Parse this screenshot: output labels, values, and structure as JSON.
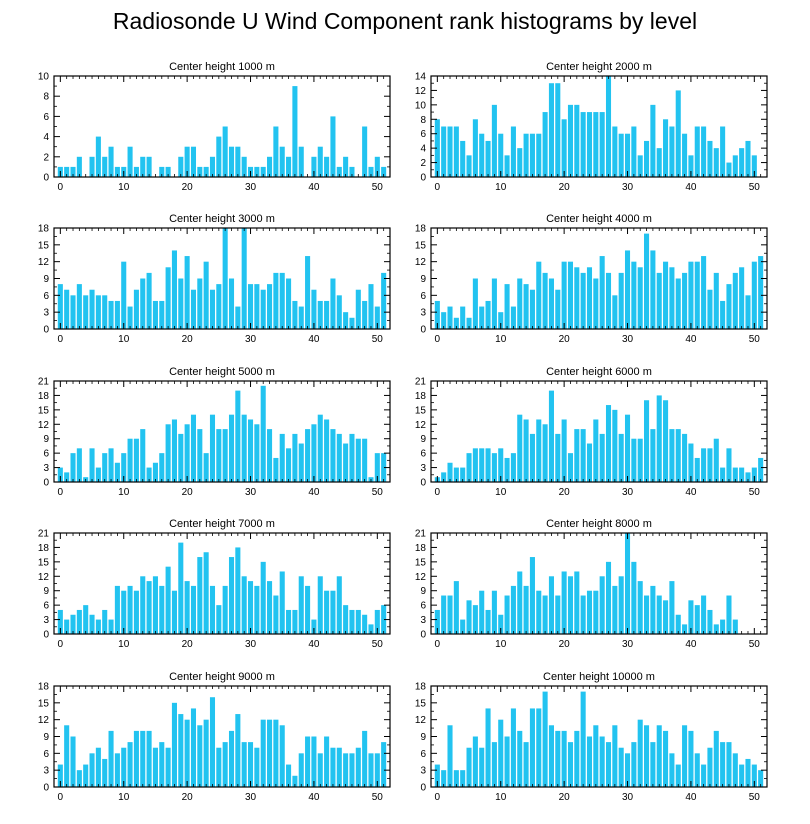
{
  "title": "Radiosonde U Wind Component rank histograms by level",
  "bar_color": "#22c3f0",
  "chart_data": [
    {
      "type": "bar",
      "title": "Center height 1000 m",
      "ylim": [
        0,
        10
      ],
      "yticks": [
        0,
        2,
        4,
        6,
        8,
        10
      ],
      "xticks": [
        0,
        10,
        20,
        30,
        40,
        50
      ],
      "x": [
        0,
        1,
        2,
        3,
        4,
        5,
        6,
        7,
        8,
        9,
        10,
        11,
        12,
        13,
        14,
        15,
        16,
        17,
        18,
        19,
        20,
        21,
        22,
        23,
        24,
        25,
        26,
        27,
        28,
        29,
        30,
        31,
        32,
        33,
        34,
        35,
        36,
        37,
        38,
        39,
        40,
        41,
        42,
        43,
        44,
        45,
        46,
        47,
        48,
        49,
        50,
        51
      ],
      "values": [
        1,
        1,
        1,
        2,
        0,
        2,
        4,
        2,
        3,
        1,
        1,
        3,
        1,
        2,
        2,
        0,
        1,
        1,
        0,
        2,
        3,
        3,
        1,
        1,
        2,
        4,
        5,
        3,
        3,
        2,
        1,
        1,
        1,
        2,
        5,
        3,
        2,
        9,
        3,
        0,
        2,
        3,
        2,
        6,
        1,
        2,
        1,
        0,
        5,
        1,
        2,
        1
      ]
    },
    {
      "type": "bar",
      "title": "Center height 2000 m",
      "ylim": [
        0,
        14
      ],
      "yticks": [
        0,
        2,
        4,
        6,
        8,
        10,
        12,
        14
      ],
      "xticks": [
        0,
        10,
        20,
        30,
        40,
        50
      ],
      "x": [
        0,
        1,
        2,
        3,
        4,
        5,
        6,
        7,
        8,
        9,
        10,
        11,
        12,
        13,
        14,
        15,
        16,
        17,
        18,
        19,
        20,
        21,
        22,
        23,
        24,
        25,
        26,
        27,
        28,
        29,
        30,
        31,
        32,
        33,
        34,
        35,
        36,
        37,
        38,
        39,
        40,
        41,
        42,
        43,
        44,
        45,
        46,
        47,
        48,
        49,
        50,
        51
      ],
      "values": [
        8,
        7,
        7,
        7,
        5,
        3,
        8,
        6,
        5,
        10,
        6,
        3,
        7,
        4,
        6,
        6,
        6,
        9,
        13,
        13,
        8,
        10,
        10,
        9,
        9,
        9,
        9,
        14,
        7,
        6,
        6,
        7,
        3,
        5,
        10,
        4,
        8,
        7,
        12,
        6,
        3,
        7,
        7,
        5,
        4,
        7,
        2,
        3,
        4,
        5,
        3,
        0
      ]
    },
    {
      "type": "bar",
      "title": "Center height 3000 m",
      "ylim": [
        0,
        18
      ],
      "yticks": [
        0,
        3,
        6,
        9,
        12,
        15,
        18
      ],
      "xticks": [
        0,
        10,
        20,
        30,
        40,
        50
      ],
      "x": [
        0,
        1,
        2,
        3,
        4,
        5,
        6,
        7,
        8,
        9,
        10,
        11,
        12,
        13,
        14,
        15,
        16,
        17,
        18,
        19,
        20,
        21,
        22,
        23,
        24,
        25,
        26,
        27,
        28,
        29,
        30,
        31,
        32,
        33,
        34,
        35,
        36,
        37,
        38,
        39,
        40,
        41,
        42,
        43,
        44,
        45,
        46,
        47,
        48,
        49,
        50,
        51
      ],
      "values": [
        8,
        7,
        6,
        8,
        6,
        7,
        6,
        6,
        5,
        5,
        12,
        4,
        7,
        9,
        10,
        5,
        5,
        11,
        14,
        9,
        13,
        7,
        9,
        12,
        7,
        8,
        18,
        9,
        4,
        18,
        8,
        8,
        7,
        8,
        10,
        10,
        9,
        5,
        4,
        13,
        7,
        5,
        5,
        9,
        6,
        3,
        2,
        7,
        5,
        8,
        4,
        10
      ]
    },
    {
      "type": "bar",
      "title": "Center height 4000 m",
      "ylim": [
        0,
        18
      ],
      "yticks": [
        0,
        3,
        6,
        9,
        12,
        15,
        18
      ],
      "xticks": [
        0,
        10,
        20,
        30,
        40,
        50
      ],
      "x": [
        0,
        1,
        2,
        3,
        4,
        5,
        6,
        7,
        8,
        9,
        10,
        11,
        12,
        13,
        14,
        15,
        16,
        17,
        18,
        19,
        20,
        21,
        22,
        23,
        24,
        25,
        26,
        27,
        28,
        29,
        30,
        31,
        32,
        33,
        34,
        35,
        36,
        37,
        38,
        39,
        40,
        41,
        42,
        43,
        44,
        45,
        46,
        47,
        48,
        49,
        50,
        51
      ],
      "values": [
        5,
        3,
        4,
        2,
        4,
        2,
        9,
        4,
        5,
        9,
        3,
        8,
        4,
        9,
        8,
        7,
        12,
        10,
        9,
        7,
        12,
        12,
        11,
        10,
        11,
        9,
        13,
        10,
        6,
        10,
        14,
        12,
        11,
        17,
        14,
        10,
        12,
        11,
        9,
        10,
        12,
        12,
        13,
        7,
        10,
        5,
        8,
        10,
        11,
        6,
        12,
        13
      ]
    },
    {
      "type": "bar",
      "title": "Center height 5000 m",
      "ylim": [
        0,
        21
      ],
      "yticks": [
        0,
        3,
        6,
        9,
        12,
        15,
        18,
        21
      ],
      "xticks": [
        0,
        10,
        20,
        30,
        40,
        50
      ],
      "x": [
        0,
        1,
        2,
        3,
        4,
        5,
        6,
        7,
        8,
        9,
        10,
        11,
        12,
        13,
        14,
        15,
        16,
        17,
        18,
        19,
        20,
        21,
        22,
        23,
        24,
        25,
        26,
        27,
        28,
        29,
        30,
        31,
        32,
        33,
        34,
        35,
        36,
        37,
        38,
        39,
        40,
        41,
        42,
        43,
        44,
        45,
        46,
        47,
        48,
        49,
        50,
        51
      ],
      "values": [
        3,
        2,
        6,
        7,
        1,
        7,
        3,
        6,
        7,
        4,
        6,
        9,
        9,
        11,
        3,
        4,
        6,
        12,
        13,
        10,
        12,
        14,
        11,
        6,
        14,
        11,
        11,
        14,
        19,
        14,
        13,
        12,
        20,
        11,
        5,
        10,
        7,
        10,
        8,
        11,
        12,
        14,
        13,
        11,
        10,
        8,
        10,
        9,
        9,
        1,
        6,
        6
      ]
    },
    {
      "type": "bar",
      "title": "Center height 6000 m",
      "ylim": [
        0,
        21
      ],
      "yticks": [
        0,
        3,
        6,
        9,
        12,
        15,
        18,
        21
      ],
      "xticks": [
        0,
        10,
        20,
        30,
        40,
        50
      ],
      "x": [
        0,
        1,
        2,
        3,
        4,
        5,
        6,
        7,
        8,
        9,
        10,
        11,
        12,
        13,
        14,
        15,
        16,
        17,
        18,
        19,
        20,
        21,
        22,
        23,
        24,
        25,
        26,
        27,
        28,
        29,
        30,
        31,
        32,
        33,
        34,
        35,
        36,
        37,
        38,
        39,
        40,
        41,
        42,
        43,
        44,
        45,
        46,
        47,
        48,
        49,
        50,
        51
      ],
      "values": [
        1,
        2,
        4,
        3,
        3,
        6,
        7,
        7,
        7,
        6,
        7,
        5,
        6,
        14,
        13,
        10,
        13,
        12,
        19,
        10,
        13,
        6,
        11,
        11,
        8,
        13,
        10,
        16,
        15,
        10,
        14,
        9,
        9,
        17,
        11,
        18,
        17,
        11,
        11,
        10,
        8,
        5,
        7,
        7,
        9,
        3,
        7,
        3,
        3,
        2,
        3,
        5
      ]
    },
    {
      "type": "bar",
      "title": "Center height 7000 m",
      "ylim": [
        0,
        21
      ],
      "yticks": [
        0,
        3,
        6,
        9,
        12,
        15,
        18,
        21
      ],
      "xticks": [
        0,
        10,
        20,
        30,
        40,
        50
      ],
      "x": [
        0,
        1,
        2,
        3,
        4,
        5,
        6,
        7,
        8,
        9,
        10,
        11,
        12,
        13,
        14,
        15,
        16,
        17,
        18,
        19,
        20,
        21,
        22,
        23,
        24,
        25,
        26,
        27,
        28,
        29,
        30,
        31,
        32,
        33,
        34,
        35,
        36,
        37,
        38,
        39,
        40,
        41,
        42,
        43,
        44,
        45,
        46,
        47,
        48,
        49,
        50,
        51
      ],
      "values": [
        5,
        3,
        4,
        5,
        6,
        4,
        3,
        5,
        3,
        10,
        9,
        10,
        9,
        12,
        11,
        12,
        10,
        14,
        9,
        19,
        11,
        10,
        16,
        17,
        10,
        6,
        10,
        16,
        18,
        12,
        11,
        10,
        15,
        11,
        8,
        13,
        5,
        5,
        12,
        10,
        3,
        12,
        9,
        9,
        12,
        6,
        5,
        5,
        4,
        2,
        5,
        6
      ]
    },
    {
      "type": "bar",
      "title": "Center height 8000 m",
      "ylim": [
        0,
        21
      ],
      "yticks": [
        0,
        3,
        6,
        9,
        12,
        15,
        18,
        21
      ],
      "xticks": [
        0,
        10,
        20,
        30,
        40,
        50
      ],
      "x": [
        0,
        1,
        2,
        3,
        4,
        5,
        6,
        7,
        8,
        9,
        10,
        11,
        12,
        13,
        14,
        15,
        16,
        17,
        18,
        19,
        20,
        21,
        22,
        23,
        24,
        25,
        26,
        27,
        28,
        29,
        30,
        31,
        32,
        33,
        34,
        35,
        36,
        37,
        38,
        39,
        40,
        41,
        42,
        43,
        44,
        45,
        46,
        47,
        48,
        49,
        50,
        51
      ],
      "values": [
        5,
        8,
        8,
        11,
        3,
        7,
        6,
        9,
        5,
        9,
        4,
        8,
        10,
        13,
        10,
        16,
        9,
        8,
        12,
        8,
        13,
        12,
        13,
        8,
        9,
        9,
        12,
        15,
        10,
        12,
        21,
        15,
        11,
        8,
        10,
        8,
        7,
        11,
        4,
        2,
        7,
        6,
        8,
        5,
        2,
        3,
        8,
        3,
        0,
        0,
        0,
        0
      ]
    },
    {
      "type": "bar",
      "title": "Center height 9000 m",
      "ylim": [
        0,
        18
      ],
      "yticks": [
        0,
        3,
        6,
        9,
        12,
        15,
        18
      ],
      "xticks": [
        0,
        10,
        20,
        30,
        40,
        50
      ],
      "x": [
        0,
        1,
        2,
        3,
        4,
        5,
        6,
        7,
        8,
        9,
        10,
        11,
        12,
        13,
        14,
        15,
        16,
        17,
        18,
        19,
        20,
        21,
        22,
        23,
        24,
        25,
        26,
        27,
        28,
        29,
        30,
        31,
        32,
        33,
        34,
        35,
        36,
        37,
        38,
        39,
        40,
        41,
        42,
        43,
        44,
        45,
        46,
        47,
        48,
        49,
        50,
        51
      ],
      "values": [
        4,
        11,
        9,
        3,
        4,
        6,
        7,
        5,
        10,
        6,
        7,
        8,
        10,
        10,
        10,
        7,
        8,
        7,
        15,
        13,
        12,
        14,
        11,
        12,
        16,
        7,
        8,
        10,
        13,
        8,
        8,
        7,
        12,
        12,
        12,
        11,
        4,
        2,
        6,
        9,
        9,
        6,
        9,
        7,
        7,
        6,
        6,
        7,
        10,
        6,
        6,
        8
      ]
    },
    {
      "type": "bar",
      "title": "Center height 10000 m",
      "ylim": [
        0,
        18
      ],
      "yticks": [
        0,
        3,
        6,
        9,
        12,
        15,
        18
      ],
      "xticks": [
        0,
        10,
        20,
        30,
        40,
        50
      ],
      "x": [
        0,
        1,
        2,
        3,
        4,
        5,
        6,
        7,
        8,
        9,
        10,
        11,
        12,
        13,
        14,
        15,
        16,
        17,
        18,
        19,
        20,
        21,
        22,
        23,
        24,
        25,
        26,
        27,
        28,
        29,
        30,
        31,
        32,
        33,
        34,
        35,
        36,
        37,
        38,
        39,
        40,
        41,
        42,
        43,
        44,
        45,
        46,
        47,
        48,
        49,
        50,
        51
      ],
      "values": [
        4,
        3,
        11,
        3,
        3,
        7,
        9,
        7,
        14,
        8,
        12,
        9,
        14,
        10,
        8,
        14,
        14,
        17,
        11,
        10,
        10,
        8,
        10,
        17,
        9,
        11,
        9,
        8,
        11,
        7,
        6,
        8,
        12,
        11,
        8,
        11,
        10,
        6,
        4,
        11,
        10,
        6,
        4,
        7,
        10,
        8,
        8,
        6,
        4,
        5,
        4,
        3
      ]
    }
  ]
}
